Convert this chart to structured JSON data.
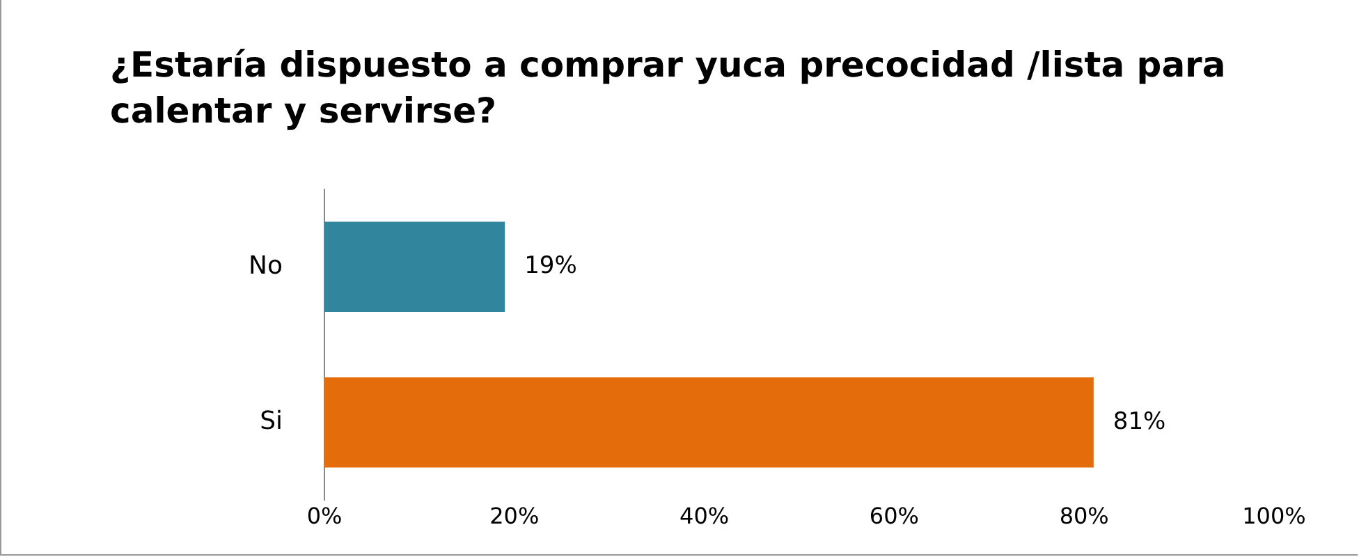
{
  "chart_data": {
    "type": "bar",
    "orientation": "horizontal",
    "title": "¿Estaría dispuesto a comprar yuca precocidad /lista para calentar y servirse?",
    "categories": [
      "No",
      "Si"
    ],
    "values": [
      19,
      81
    ],
    "colors": [
      "#31859c",
      "#e46c0a"
    ],
    "value_labels": [
      "19%",
      "81%"
    ],
    "xlim": [
      0,
      100
    ],
    "xticks": [
      {
        "value": 0,
        "label": "0%"
      },
      {
        "value": 20,
        "label": "20%"
      },
      {
        "value": 40,
        "label": "40%"
      },
      {
        "value": 60,
        "label": "60%"
      },
      {
        "value": 80,
        "label": "80%"
      },
      {
        "value": 100,
        "label": "100%"
      }
    ],
    "grid": false,
    "legend": false
  }
}
